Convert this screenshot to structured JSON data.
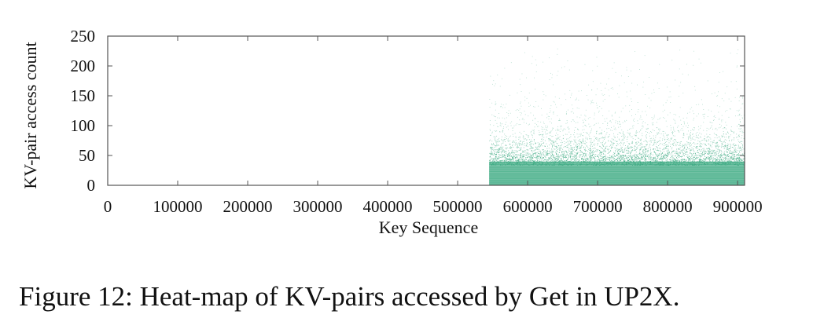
{
  "caption": "Figure 12: Heat-map of KV-pairs accessed by Get in UP2X.",
  "chart_data": {
    "type": "scatter",
    "title": "",
    "xlabel": "Key Sequence",
    "ylabel": "KV-pair access count",
    "xlim": [
      0,
      910000
    ],
    "ylim": [
      0,
      250
    ],
    "xticks": [
      0,
      100000,
      200000,
      300000,
      400000,
      500000,
      600000,
      700000,
      800000,
      900000
    ],
    "yticks": [
      0,
      50,
      100,
      150,
      200,
      250
    ],
    "xtick_labels": [
      "0",
      "100000",
      "200000",
      "300000",
      "400000",
      "500000",
      "600000",
      "700000",
      "800000",
      "900000"
    ],
    "ytick_labels": [
      "0",
      "50",
      "100",
      "150",
      "200",
      "250"
    ],
    "grid": false,
    "point_color": "#3daa82",
    "series": [
      {
        "x_range": [
          545000,
          910000
        ],
        "dense_band": [
          0,
          40
        ],
        "points_y_max": 230,
        "density_profile": [
          {
            "y": 0,
            "density": 1.0
          },
          {
            "y": 40,
            "density": 0.85
          },
          {
            "y": 60,
            "density": 0.45
          },
          {
            "y": 80,
            "density": 0.22
          },
          {
            "y": 100,
            "density": 0.1
          },
          {
            "y": 130,
            "density": 0.04
          },
          {
            "y": 170,
            "density": 0.015
          },
          {
            "y": 230,
            "density": 0.004
          }
        ]
      }
    ]
  }
}
